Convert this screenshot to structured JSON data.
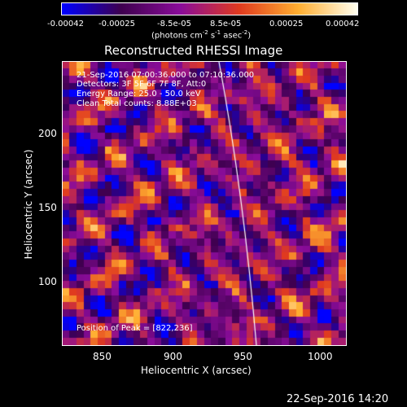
{
  "colorbar": {
    "tick_labels": [
      "-0.00042",
      "-0.00025",
      "-8.5e-05",
      "8.5e-05",
      "0.00025",
      "0.00042"
    ],
    "unit_label": "(photons cm",
    "unit_sup1": "-2",
    "unit_mid": " s",
    "unit_sup2": "-1",
    "unit_end": " asec",
    "unit_sup3": "-2",
    "unit_close": ")",
    "colors": [
      "#0000ff",
      "#3f004f",
      "#8a0c9a",
      "#e03a1f",
      "#ffae30",
      "#fffff0"
    ]
  },
  "plot": {
    "title": "Reconstructed RHESSI Image",
    "info_lines": [
      "21-Sep-2016 07:00:36.000 to 07:10:36.000",
      "Detectors: 3F 5F 6F 7F 8F, Att:0",
      "Energy Range: 25.0 - 50.0 keV",
      "Clean     Total counts: 8.88E+03"
    ],
    "peak_text": "Position of Peak = [822,236]",
    "xlabel": "Heliocentric X (arcsec)",
    "ylabel": "Heliocentric Y (arcsec)",
    "x_ticks": [
      "850",
      "900",
      "950",
      "1000"
    ],
    "y_ticks": [
      "100",
      "150",
      "200"
    ],
    "limb_color": "#ffffff"
  },
  "footer": {
    "timestamp": "22-Sep-2016 14:20"
  }
}
